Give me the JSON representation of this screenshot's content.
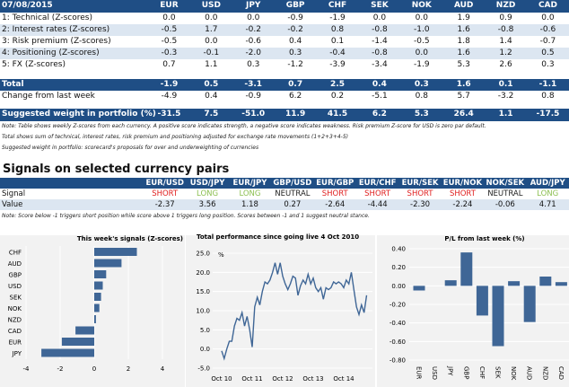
{
  "header": {
    "date": "07/08/2015",
    "currencies": [
      "EUR",
      "USD",
      "JPY",
      "GBP",
      "CHF",
      "SEK",
      "NOK",
      "AUD",
      "NZD",
      "CAD"
    ]
  },
  "rows": [
    {
      "label": "1: Technical (Z-scores)",
      "values": [
        "0.0",
        "0.0",
        "0.0",
        "-0.9",
        "-1.9",
        "0.0",
        "0.0",
        "1.9",
        "0.9",
        "0.0"
      ]
    },
    {
      "label": "2: Interest rates (Z-scores)",
      "values": [
        "-0.5",
        "1.7",
        "-0.2",
        "-0.2",
        "0.8",
        "-0.8",
        "-1.0",
        "1.6",
        "-0.8",
        "-0.6"
      ]
    },
    {
      "label": "3: Risk premium (Z-scores)",
      "values": [
        "-0.5",
        "0.0",
        "-0.6",
        "0.4",
        "0.1",
        "-1.4",
        "-0.5",
        "1.8",
        "1.4",
        "-0.7"
      ]
    },
    {
      "label": "4: Positioning (Z-scores)",
      "values": [
        "-0.3",
        "-0.1",
        "-2.0",
        "0.3",
        "-0.4",
        "-0.8",
        "0.0",
        "1.6",
        "1.2",
        "0.5"
      ]
    },
    {
      "label": "5: FX (Z-scores)",
      "values": [
        "0.7",
        "1.1",
        "0.3",
        "-1.2",
        "-3.9",
        "-3.4",
        "-1.9",
        "5.3",
        "2.6",
        "0.3"
      ]
    }
  ],
  "total": {
    "label": "Total",
    "values": [
      "-1.9",
      "0.5",
      "-3.1",
      "0.7",
      "2.5",
      "0.4",
      "0.3",
      "1.6",
      "0.1",
      "-1.1"
    ]
  },
  "change": {
    "label": "Change from last week",
    "values": [
      "-4.9",
      "0.4",
      "-0.9",
      "6.2",
      "0.2",
      "-5.1",
      "0.8",
      "5.7",
      "-3.2",
      "0.8"
    ]
  },
  "weight": {
    "label": "Suggested weight in portfolio (%)",
    "values": [
      "-31.5",
      "7.5",
      "-51.0",
      "11.9",
      "41.5",
      "6.2",
      "5.3",
      "26.4",
      "1.1",
      "-17.5"
    ]
  },
  "notes": [
    "Note: Table shows weekly Z-scores from each currency. A positive score indicates strength, a negative score indicates weakness. Risk premium Z-score for USD is zero par default.",
    "Total shows sum of technical, interest rates, risk premium and positioning adjusted for exchange rate movements (1+2+3+4-5)",
    "Suggested weight in portfolio: scorecard's proposals for over and underweighting of currencies"
  ],
  "signals": {
    "title": "Signals on selected currency pairs",
    "pairs": [
      "EUR/USD",
      "USD/JPY",
      "EUR/JPY",
      "GBP/USD",
      "EUR/GBP",
      "EUR/CHF",
      "EUR/SEK",
      "EUR/NOK",
      "NOK/SEK",
      "AUD/JPY"
    ],
    "signal_label": "Signal",
    "signal": [
      "SHORT",
      "LONG",
      "LONG",
      "NEUTRAL",
      "SHORT",
      "SHORT",
      "SHORT",
      "SHORT",
      "NEUTRAL",
      "LONG"
    ],
    "value_label": "Value",
    "value": [
      "-2.37",
      "3.56",
      "1.18",
      "0.27",
      "-2.64",
      "-4.44",
      "-2.30",
      "-2.24",
      "-0.06",
      "4.71"
    ],
    "note": "Note: Score below -1 triggers short position while score above 1 triggers long position. Scores between -1 and 1 suggest neutral stance.",
    "colors": {
      "short": "#e02020",
      "long": "#8bbf50"
    }
  },
  "chart_data": [
    {
      "type": "bar",
      "orientation": "horizontal",
      "title": "This week's signals (Z-scores)",
      "categories": [
        "CHF",
        "AUD",
        "GBP",
        "USD",
        "SEK",
        "NOK",
        "NZD",
        "CAD",
        "EUR",
        "JPY"
      ],
      "values": [
        2.5,
        1.6,
        0.7,
        0.5,
        0.4,
        0.3,
        0.1,
        -1.1,
        -1.9,
        -3.1
      ],
      "xlim": [
        -4,
        4
      ],
      "xticks": [
        "-4",
        "-2",
        "0",
        "2",
        "4"
      ],
      "color": "#3f6696",
      "grid": true
    },
    {
      "type": "line",
      "title": "Total performance since going live 4 Oct 2010",
      "ylabel": "%",
      "ylim": [
        -5,
        25
      ],
      "yticks": [
        "25.0",
        "20.0",
        "15.0",
        "10.0",
        "5.0",
        "0.0",
        "-5.0"
      ],
      "xticks": [
        "Oct 10",
        "Oct 11",
        "Oct 12",
        "Oct 13",
        "Oct 14"
      ],
      "color": "#3f6696",
      "grid": true,
      "x": [
        "2010-10",
        "2010-11",
        "2010-12",
        "2011-01",
        "2011-02",
        "2011-03",
        "2011-04",
        "2011-05",
        "2011-06",
        "2011-07",
        "2011-08",
        "2011-09",
        "2011-10",
        "2011-11",
        "2011-12",
        "2012-01",
        "2012-02",
        "2012-03",
        "2012-04",
        "2012-05",
        "2012-06",
        "2012-07",
        "2012-08",
        "2012-09",
        "2012-10",
        "2012-11",
        "2012-12",
        "2013-01",
        "2013-02",
        "2013-03",
        "2013-04",
        "2013-05",
        "2013-06",
        "2013-07",
        "2013-08",
        "2013-09",
        "2013-10",
        "2013-11",
        "2013-12",
        "2014-01",
        "2014-02",
        "2014-03",
        "2014-04",
        "2014-05",
        "2014-06",
        "2014-07",
        "2014-08",
        "2014-09",
        "2014-10",
        "2014-11",
        "2014-12",
        "2015-01",
        "2015-02",
        "2015-03",
        "2015-04",
        "2015-05",
        "2015-06",
        "2015-07"
      ],
      "values": [
        -0.5,
        -2.5,
        0,
        2,
        2,
        6,
        8,
        7.5,
        9.5,
        6,
        8.5,
        5,
        0.5,
        11,
        13.5,
        11.5,
        15,
        17.5,
        17,
        18,
        20,
        22.5,
        19.5,
        22.5,
        19,
        17,
        15.5,
        17,
        19,
        18.5,
        14,
        16.5,
        18,
        17,
        19.5,
        17,
        18.5,
        16,
        15,
        16,
        13,
        16,
        15.5,
        16,
        17.5,
        17,
        17.5,
        17,
        16,
        18,
        17,
        20,
        15.5,
        11,
        9,
        11.5,
        9.5,
        14
      ]
    },
    {
      "type": "bar",
      "title": "P/L from last week (%)",
      "categories": [
        "EUR",
        "USD",
        "JPY",
        "GBP",
        "CHF",
        "SEK",
        "NOK",
        "AUD",
        "NZD",
        "CAD"
      ],
      "values": [
        -0.05,
        0,
        0.06,
        0.36,
        -0.32,
        -0.65,
        0.05,
        -0.39,
        0.1,
        0.04
      ],
      "ylim": [
        -0.8,
        0.4
      ],
      "yticks": [
        "0.40",
        "0.20",
        "0.00",
        "-0.20",
        "-0.40",
        "-0.60",
        "-0.80"
      ],
      "color": "#3f6696",
      "grid": true
    }
  ]
}
